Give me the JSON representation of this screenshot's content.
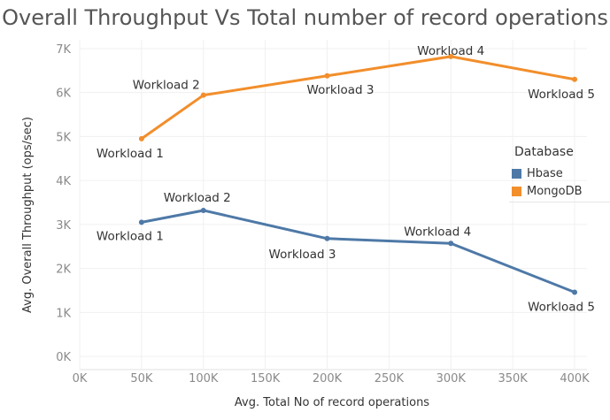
{
  "chart_data": {
    "type": "line",
    "title": "Overall Throughput Vs Total number of record operations",
    "xlabel": "Avg. Total No of record operations",
    "ylabel": "Avg. Overall Throughput (ops/sec)",
    "xlim": [
      0,
      410000
    ],
    "ylim": [
      -300,
      7200
    ],
    "x_ticks": [
      0,
      50000,
      100000,
      150000,
      200000,
      250000,
      300000,
      350000,
      400000
    ],
    "x_tick_labels": [
      "0K",
      "50K",
      "100K",
      "150K",
      "200K",
      "250K",
      "300K",
      "350K",
      "400K"
    ],
    "y_ticks": [
      0,
      1000,
      2000,
      3000,
      4000,
      5000,
      6000,
      7000
    ],
    "y_tick_labels": [
      "0K",
      "1K",
      "2K",
      "3K",
      "4K",
      "5K",
      "6K",
      "7K"
    ],
    "grid": true,
    "legend": {
      "title": "Database",
      "position": "right"
    },
    "series": [
      {
        "name": "Hbase",
        "color": "#4e79a7",
        "x": [
          50000,
          100000,
          200000,
          300000,
          400000
        ],
        "y": [
          3050,
          3320,
          2680,
          2570,
          1460
        ],
        "labels": [
          "Workload 1",
          "Workload 2",
          "Workload 3",
          "Workload 4",
          "Workload 5"
        ]
      },
      {
        "name": "MongoDB",
        "color": "#f28e2b",
        "x": [
          50000,
          100000,
          200000,
          300000,
          400000
        ],
        "y": [
          4950,
          5940,
          6380,
          6820,
          6300
        ],
        "labels": [
          "Workload 1",
          "Workload 2",
          "Workload 3",
          "Workload 4",
          "Workload 5"
        ]
      }
    ]
  }
}
